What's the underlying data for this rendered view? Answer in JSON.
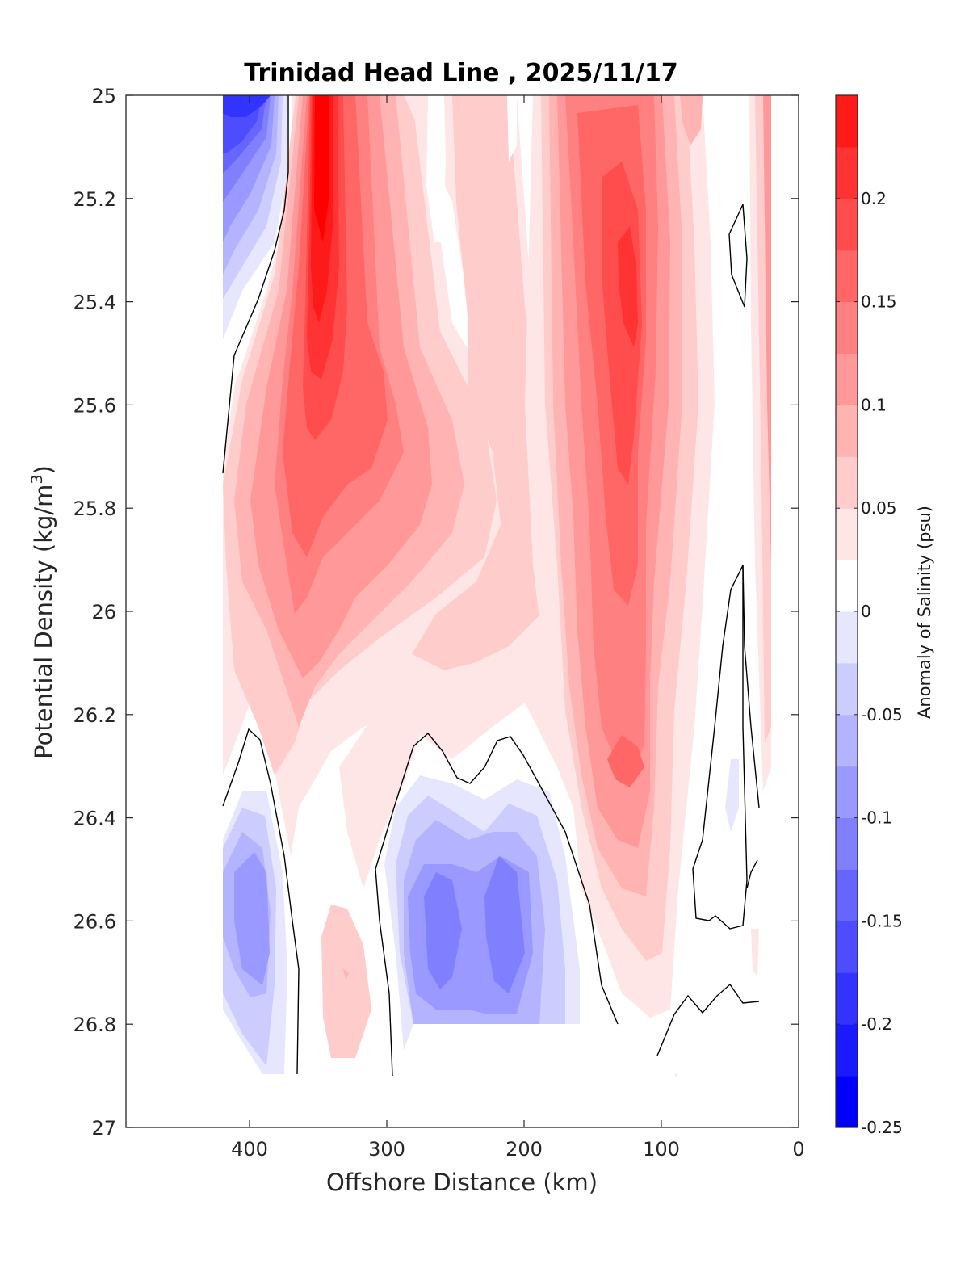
{
  "chart_data": {
    "type": "filled-contour",
    "title": "Trinidad Head Line , 2025/11/17",
    "xlabel": "Offshore Distance (km)",
    "ylabel": "Potential Density (kg/m",
    "ylabel_sup": "3",
    "ylabel_end": ")",
    "xlim": [
      490,
      0
    ],
    "ylim": [
      25,
      27
    ],
    "xticks": [
      400,
      300,
      200,
      100,
      0
    ],
    "xtick_labels": [
      "400",
      "300",
      "200",
      "100",
      "0"
    ],
    "yticks": [
      25,
      25.2,
      25.4,
      25.6,
      25.8,
      26,
      26.2,
      26.4,
      26.6,
      26.8,
      27
    ],
    "ytick_labels": [
      "25",
      "25.2",
      "25.4",
      "25.6",
      "25.8",
      "26",
      "26.2",
      "26.4",
      "26.6",
      "26.8",
      "27"
    ],
    "colorbar": {
      "label": "Anomaly of Salinity (psu)",
      "range": [
        -0.25,
        0.25
      ],
      "levels": [
        -0.25,
        -0.225,
        -0.2,
        -0.175,
        -0.15,
        -0.125,
        -0.1,
        -0.075,
        -0.05,
        -0.025,
        0,
        0.025,
        0.05,
        0.075,
        0.1,
        0.125,
        0.15,
        0.175,
        0.2,
        0.225,
        0.25
      ],
      "ticks": [
        0.2,
        0.15,
        0.1,
        0.05,
        0,
        -0.05,
        -0.1,
        -0.15,
        -0.2,
        -0.25
      ],
      "tick_labels": [
        "0.2",
        "0.15",
        "0.1",
        "0.05",
        "0",
        "-0.05",
        "-0.1",
        "-0.15",
        "-0.2",
        "-0.25"
      ],
      "colors": [
        "#0000ff",
        "#1a1aff",
        "#3333ff",
        "#4d4dff",
        "#6666ff",
        "#8080ff",
        "#9999ff",
        "#b3b3ff",
        "#ccccff",
        "#e6e6ff",
        "#ffffff",
        "#ffffff",
        "#ffe6e6",
        "#ffcccc",
        "#ffb3b3",
        "#ff9999",
        "#ff8080",
        "#ff6666",
        "#ff4d4d",
        "#ff3333",
        "#ff1a1a",
        "#ff0000"
      ]
    },
    "data_extent": {
      "x": [
        20,
        420
      ],
      "y": [
        25,
        26.9
      ]
    },
    "field_description": "Salinity anomaly on isopycnals: strong positive core near 345 km at sigma 25.0-25.6, secondary positive core near 125 km at 25.3-25.5, negative anomalies at 400-420 km near 25.0 and at 190-280 km near 26.5-26.7",
    "features": [
      {
        "x": 340,
        "y": 25.2,
        "value": 0.23,
        "label": "offshore salty core"
      },
      {
        "x": 400,
        "y": 25.0,
        "value": -0.2,
        "label": "offshore fresh anomaly"
      },
      {
        "x": 125,
        "y": 25.35,
        "value": 0.19,
        "label": "nearshore salty core"
      },
      {
        "x": 265,
        "y": 26.62,
        "value": -0.13,
        "label": "deep fresh anomaly west"
      },
      {
        "x": 210,
        "y": 26.62,
        "value": -0.13,
        "label": "deep fresh anomaly east"
      },
      {
        "x": 400,
        "y": 26.6,
        "value": -0.08,
        "label": "deep fresh anomaly offshore"
      }
    ]
  }
}
